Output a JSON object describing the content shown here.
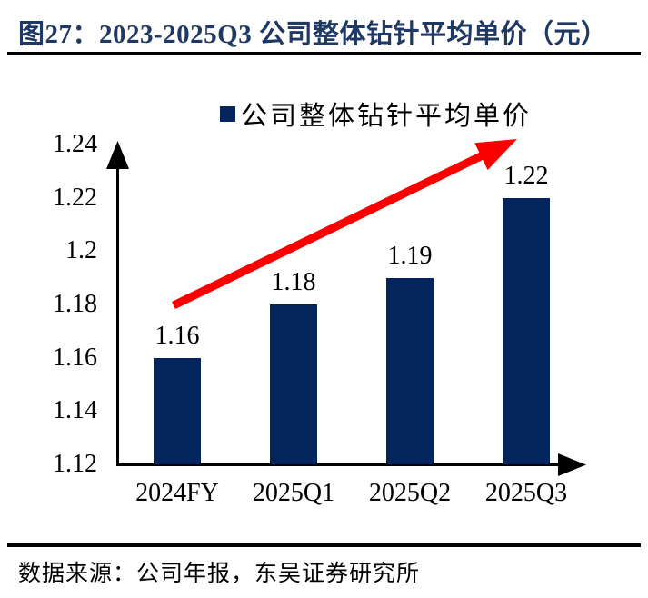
{
  "figure": {
    "title": "图27：2023-2025Q3 公司整体钻针平均单价（元）",
    "source": "数据来源：公司年报，东吴证券研究所"
  },
  "legend": {
    "marker": "navy-square",
    "label": "公司整体钻针平均单价"
  },
  "colors": {
    "bar": "#04245E",
    "title_text": "#1F3864",
    "trend_arrow": "#FC0000",
    "axis": "#000000",
    "text": "#000000"
  },
  "chart_data": {
    "type": "bar",
    "title": "公司整体钻针平均单价",
    "categories": [
      "2024FY",
      "2025Q1",
      "2025Q2",
      "2025Q3"
    ],
    "values": [
      1.16,
      1.18,
      1.19,
      1.22
    ],
    "value_labels": [
      "1.16",
      "1.18",
      "1.19",
      "1.22"
    ],
    "xlabel": "",
    "ylabel": "",
    "ylim": [
      1.12,
      1.24
    ],
    "yticks": [
      1.12,
      1.14,
      1.16,
      1.18,
      1.2,
      1.22,
      1.24
    ],
    "ytick_labels": [
      "1.12",
      "1.14",
      "1.16",
      "1.18",
      "1.2",
      "1.22",
      "1.24"
    ],
    "grid": false,
    "legend_position": "top-center",
    "annotations": [
      {
        "type": "trend-arrow",
        "direction": "up-right",
        "color": "#FC0000",
        "meaning": "rising average unit price"
      }
    ]
  }
}
